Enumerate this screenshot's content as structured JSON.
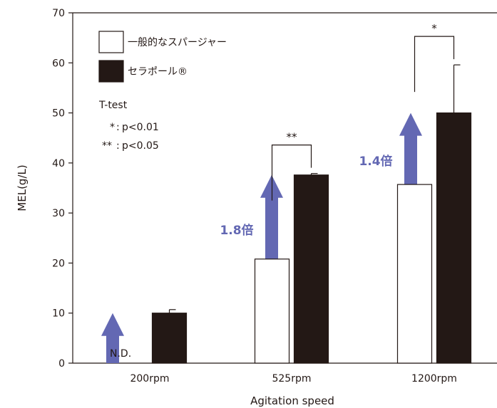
{
  "chart_data": {
    "type": "bar",
    "title": "",
    "xlabel": "Agitation speed",
    "ylabel": "MEL(g/L)",
    "ylim": [
      0,
      70
    ],
    "yticks": [
      0,
      10,
      20,
      30,
      40,
      50,
      60,
      70
    ],
    "categories": [
      "200rpm",
      "525rpm",
      "1200rpm"
    ],
    "series": [
      {
        "name": "一般的なスパージャー",
        "color": "#ffffff",
        "values": [
          null,
          20.8,
          35.7
        ],
        "errors": [
          null,
          null,
          null
        ]
      },
      {
        "name": "セラポール®",
        "color": "#231815",
        "values": [
          10.0,
          37.6,
          50.0
        ],
        "errors": [
          0.7,
          0.3,
          9.6
        ]
      }
    ],
    "annotations": {
      "not_detected": "N.D.",
      "ratios": [
        {
          "category": "525rpm",
          "text": "1.8倍"
        },
        {
          "category": "1200rpm",
          "text": "1.4倍"
        }
      ],
      "significance": [
        {
          "category": "525rpm",
          "marker": "**"
        },
        {
          "category": "1200rpm",
          "marker": "*"
        }
      ],
      "stat_test": {
        "title": "T-test",
        "lines": [
          {
            "marker": "*",
            "text": "p<0.01"
          },
          {
            "marker": "**",
            "text": "p<0.05"
          }
        ]
      }
    },
    "arrow_color": "#6368b3",
    "grid": false,
    "legend_position": "top-left"
  }
}
